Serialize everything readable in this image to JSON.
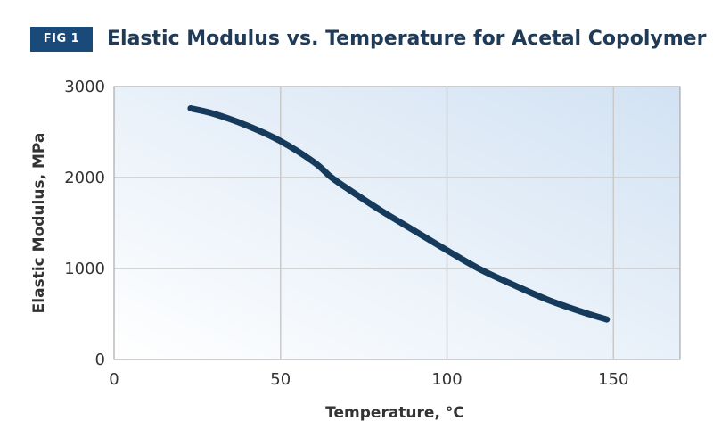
{
  "header": {
    "badge": "FIG 1",
    "title": "Elastic Modulus vs. Temperature for Acetal Copolymer"
  },
  "colors": {
    "badge_bg": "#1a4a7a",
    "curve": "#163a5c",
    "plot_gradient_start": "#ffffff",
    "plot_gradient_end": "#d2e2f3",
    "grid": "#c9c9c9",
    "frame": "#9a9a9a"
  },
  "chart_data": {
    "type": "line",
    "title": "Elastic Modulus vs. Temperature for Acetal Copolymer",
    "xlabel": "Temperature, °C",
    "ylabel": "Elastic Modulus, MPa",
    "xlim": [
      0,
      170
    ],
    "ylim": [
      0,
      3000
    ],
    "xticks": [
      0,
      50,
      100,
      150
    ],
    "yticks": [
      0,
      1000,
      2000,
      3000
    ],
    "grid": true,
    "legend": "none",
    "series": [
      {
        "x": [
          23,
          30,
          40,
          50,
          60,
          65,
          70,
          80,
          90,
          100,
          110,
          120,
          130,
          140,
          148
        ],
        "y": [
          2760,
          2700,
          2570,
          2400,
          2170,
          2010,
          1880,
          1640,
          1420,
          1200,
          990,
          820,
          660,
          530,
          440
        ]
      }
    ]
  }
}
